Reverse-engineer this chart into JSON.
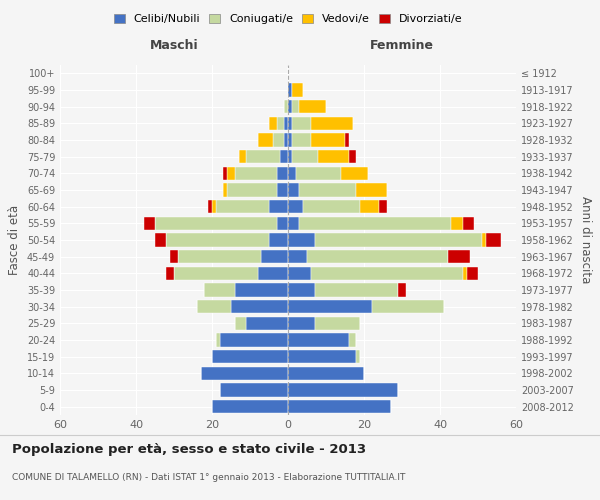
{
  "age_groups": [
    "0-4",
    "5-9",
    "10-14",
    "15-19",
    "20-24",
    "25-29",
    "30-34",
    "35-39",
    "40-44",
    "45-49",
    "50-54",
    "55-59",
    "60-64",
    "65-69",
    "70-74",
    "75-79",
    "80-84",
    "85-89",
    "90-94",
    "95-99",
    "100+"
  ],
  "birth_years": [
    "2008-2012",
    "2003-2007",
    "1998-2002",
    "1993-1997",
    "1988-1992",
    "1983-1987",
    "1978-1982",
    "1973-1977",
    "1968-1972",
    "1963-1967",
    "1958-1962",
    "1953-1957",
    "1948-1952",
    "1943-1947",
    "1938-1942",
    "1933-1937",
    "1928-1932",
    "1923-1927",
    "1918-1922",
    "1913-1917",
    "≤ 1912"
  ],
  "maschi": {
    "celibi": [
      20,
      18,
      23,
      20,
      18,
      11,
      15,
      14,
      8,
      7,
      5,
      3,
      5,
      3,
      3,
      2,
      1,
      1,
      0,
      0,
      0
    ],
    "coniugati": [
      0,
      0,
      0,
      0,
      1,
      3,
      9,
      8,
      22,
      22,
      27,
      32,
      14,
      13,
      11,
      9,
      3,
      2,
      1,
      0,
      0
    ],
    "vedovi": [
      0,
      0,
      0,
      0,
      0,
      0,
      0,
      0,
      0,
      0,
      0,
      0,
      1,
      1,
      2,
      2,
      4,
      2,
      0,
      0,
      0
    ],
    "divorziati": [
      0,
      0,
      0,
      0,
      0,
      0,
      0,
      0,
      2,
      2,
      3,
      3,
      1,
      0,
      1,
      0,
      0,
      0,
      0,
      0,
      0
    ]
  },
  "femmine": {
    "celibi": [
      27,
      29,
      20,
      18,
      16,
      7,
      22,
      7,
      6,
      5,
      7,
      3,
      4,
      3,
      2,
      1,
      1,
      1,
      1,
      1,
      0
    ],
    "coniugati": [
      0,
      0,
      0,
      1,
      2,
      12,
      19,
      22,
      40,
      37,
      44,
      40,
      15,
      15,
      12,
      7,
      5,
      5,
      2,
      0,
      0
    ],
    "vedovi": [
      0,
      0,
      0,
      0,
      0,
      0,
      0,
      0,
      1,
      0,
      1,
      3,
      5,
      8,
      7,
      8,
      9,
      11,
      7,
      3,
      0
    ],
    "divorziati": [
      0,
      0,
      0,
      0,
      0,
      0,
      0,
      2,
      3,
      6,
      4,
      3,
      2,
      0,
      0,
      2,
      1,
      0,
      0,
      0,
      0
    ]
  },
  "xlim": 60,
  "title": "Popolazione per età, sesso e stato civile - 2013",
  "subtitle": "COMUNE DI TALAMELLO (RN) - Dati ISTAT 1° gennaio 2013 - Elaborazione TUTTITALIA.IT",
  "xlabel_left": "Maschi",
  "xlabel_right": "Femmine",
  "ylabel": "Fasce di età",
  "ylabel_right": "Anni di nascita",
  "bg_color": "#f5f5f5",
  "bar_color_celibi": "#4472C4",
  "bar_color_coniugati": "#c5d9a0",
  "bar_color_vedovi": "#ffc000",
  "bar_color_divorziati": "#cc0000"
}
